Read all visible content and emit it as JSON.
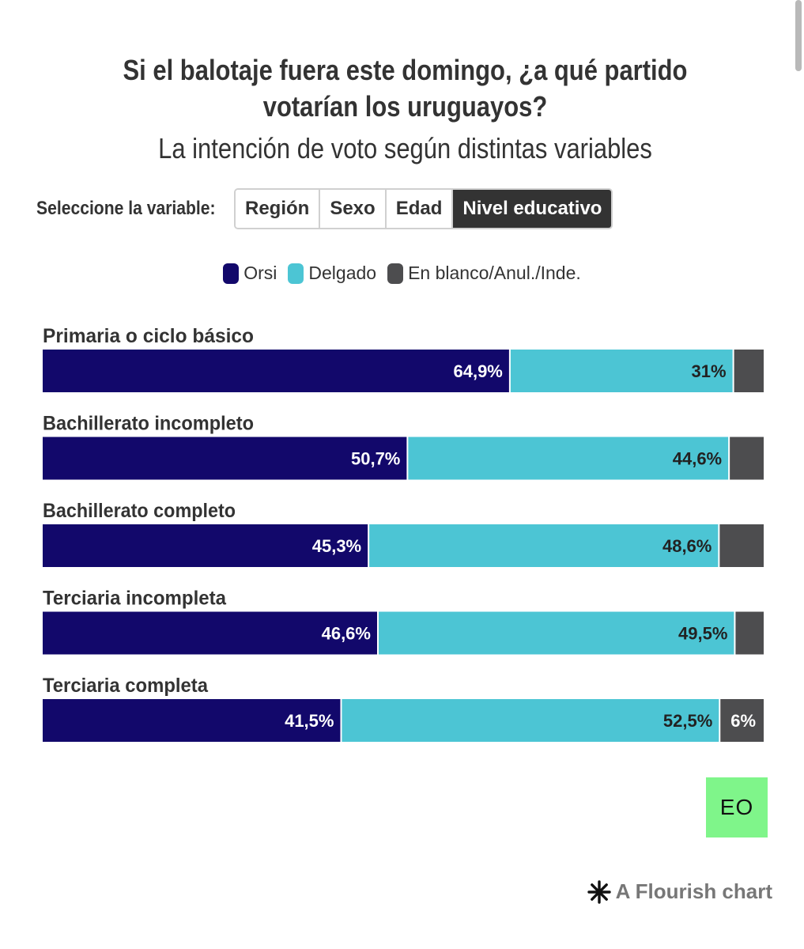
{
  "title": "Si el balotaje fuera este domingo, ¿a qué partido votarían los uruguayos?",
  "subtitle": "La intención de voto según distintas variables",
  "controls": {
    "label": "Seleccione la variable:",
    "options": [
      "Región",
      "Sexo",
      "Edad",
      "Nivel educativo"
    ],
    "selected": "Nivel educativo"
  },
  "brand_logo": "EO",
  "credit": {
    "text": "A Flourish chart",
    "icon": "asterisk-icon"
  },
  "chart_data": {
    "type": "bar",
    "orientation": "horizontal",
    "stacked": true,
    "categories": [
      "Primaria o ciclo básico",
      "Bachillerato incompleto",
      "Bachillerato completo",
      "Terciaria incompleta",
      "Terciaria completa"
    ],
    "series": [
      {
        "name": "Orsi",
        "color": "#12086b",
        "values": [
          64.9,
          50.7,
          45.3,
          46.6,
          41.5
        ],
        "labels": [
          "64,9%",
          "50,7%",
          "45,3%",
          "46,6%",
          "41,5%"
        ]
      },
      {
        "name": "Delgado",
        "color": "#4cc5d4",
        "values": [
          31,
          44.6,
          48.6,
          49.5,
          52.5
        ],
        "labels": [
          "31%",
          "44,6%",
          "48,6%",
          "49,5%",
          "52,5%"
        ]
      },
      {
        "name": "En blanco/Anul./Inde.",
        "color": "#4d4d4f",
        "values": [
          4.1,
          4.7,
          6.1,
          3.9,
          6
        ],
        "labels": [
          "",
          "",
          "",
          "",
          "6%"
        ]
      }
    ],
    "xlim": [
      0,
      100
    ],
    "legend": "top-center",
    "grid": false
  }
}
